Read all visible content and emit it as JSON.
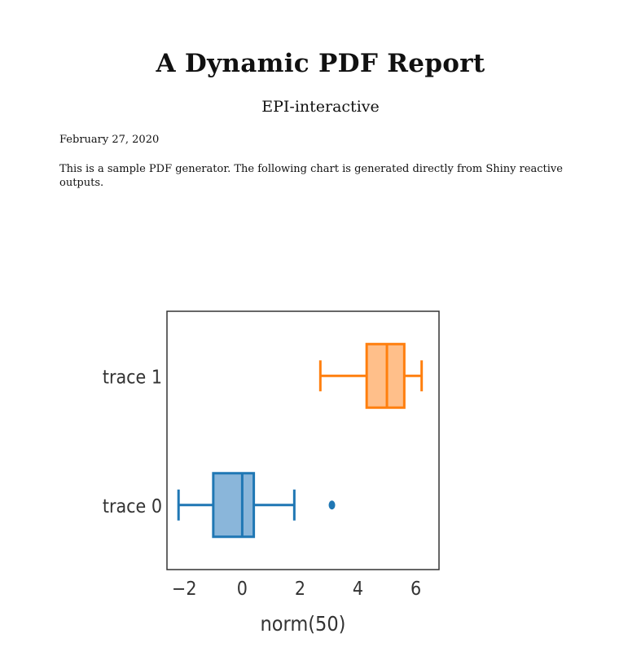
{
  "document": {
    "title": "A Dynamic PDF Report",
    "author": "EPI-interactive",
    "date": "February 27, 2020",
    "intro": "This is a sample PDF generator. The following chart is generated directly from Shiny reactive outputs."
  },
  "chart_data": {
    "type": "box",
    "orientation": "horizontal",
    "xlabel": "norm(50)",
    "xlim": [
      -2.6,
      6.8
    ],
    "xticks": [
      -2,
      0,
      2,
      4,
      6
    ],
    "xtick_labels": [
      "−2",
      "0",
      "2",
      "4",
      "6"
    ],
    "grid": false,
    "series": [
      {
        "name": "trace 0",
        "color": "#1f77b4",
        "fill": "#8ab6da",
        "whisker_low": -2.2,
        "q1": -1.0,
        "median": 0.0,
        "q3": 0.4,
        "whisker_high": 1.8,
        "outliers": [
          3.1
        ]
      },
      {
        "name": "trace 1",
        "color": "#ff7f0e",
        "fill": "#ffbf8a",
        "whisker_low": 2.7,
        "q1": 4.3,
        "median": 5.0,
        "q3": 5.6,
        "whisker_high": 6.2,
        "outliers": []
      }
    ]
  }
}
